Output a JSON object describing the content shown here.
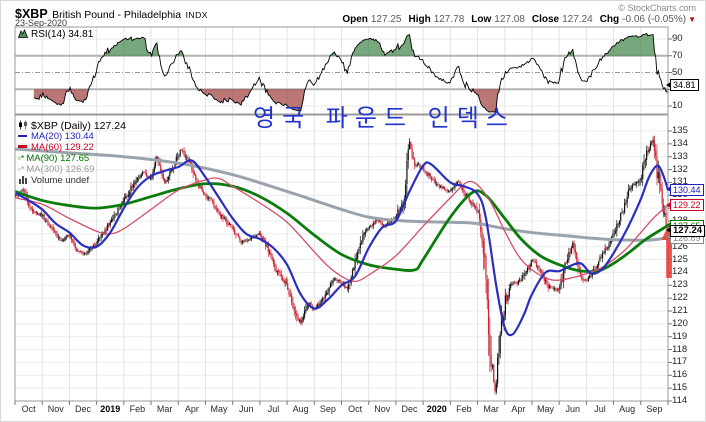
{
  "header": {
    "symbol": "$XBP",
    "name": "British Pound - Philadelphia",
    "exchange": "INDX",
    "date": "23-Sep-2020",
    "copyright": "© StockCharts.com",
    "quote": {
      "open_label": "Open",
      "open": "127.25",
      "high_label": "High",
      "high": "127.78",
      "low_label": "Low",
      "low": "127.08",
      "close_label": "Close",
      "close": "127.24",
      "chg_label": "Chg",
      "chg": "-0.06 (-0.05%)"
    }
  },
  "rsi_panel": {
    "label": "RSI(14) 34.81",
    "value_tag": "34.81",
    "axis_labels": [
      90,
      70,
      50,
      30,
      10
    ],
    "overbought": 70,
    "oversold": 30,
    "mid": 50,
    "last_value": 34.81
  },
  "main_panel": {
    "legend": [
      {
        "label": "$XBP (Daily) 127.24",
        "color": "#000000",
        "icon": "candlestick-icon"
      },
      {
        "label": "MA(20) 130.44",
        "color": "#2222bb",
        "icon": "line-icon"
      },
      {
        "label": "MA(60) 129.22",
        "color": "#cc0022",
        "icon": "line-icon"
      },
      {
        "label": "MA(90) 127.65",
        "color": "#007700",
        "icon": "square-asterisk-icon"
      },
      {
        "label": "MA(300) 126.69",
        "color": "#999999",
        "icon": "square-asterisk-icon"
      },
      {
        "label": "Volume undef",
        "color": "#333333",
        "icon": "volume-bars-icon"
      }
    ],
    "price_tags": [
      {
        "value": "130.44",
        "v": 130.44,
        "color": "#2222bb",
        "bold": false,
        "z": 4
      },
      {
        "value": "129.22",
        "v": 129.22,
        "color": "#cc0022",
        "bold": false,
        "z": 4
      },
      {
        "value": "127.65",
        "v": 127.65,
        "color": "#007700",
        "bold": false,
        "z": 3
      },
      {
        "value": "127.24",
        "v": 127.24,
        "color": "#000000",
        "bold": true,
        "z": 6
      },
      {
        "value": "126.69",
        "v": 126.69,
        "color": "#888888",
        "bold": false,
        "z": 2
      }
    ],
    "annotation": {
      "text": "영국 파운드 인덱스",
      "color": "#2233cc"
    },
    "arrow": {
      "color": "#e93b33"
    }
  },
  "x_axis": {
    "labels": [
      "Oct",
      "Nov",
      "Dec",
      "2019",
      "Feb",
      "Mar",
      "Apr",
      "May",
      "Jun",
      "Jul",
      "Aug",
      "Sep",
      "Oct",
      "Nov",
      "Dec",
      "2020",
      "Feb",
      "Mar",
      "Apr",
      "May",
      "Jun",
      "Jul",
      "Aug",
      "Sep"
    ],
    "bold_labels": [
      "2019",
      "2020"
    ]
  },
  "chart_data": {
    "type": "candlestick",
    "title": "$XBP British Pound - Philadelphia INDX (Daily)",
    "date_range": "Oct 2018 - 23 Sep 2020",
    "ylim": [
      114,
      135
    ],
    "y_step": 1,
    "grid": true,
    "months": [
      "Oct",
      "Nov",
      "Dec",
      "2019",
      "Feb",
      "Mar",
      "Apr",
      "May",
      "Jun",
      "Jul",
      "Aug",
      "Sep",
      "Oct",
      "Nov",
      "Dec",
      "2020",
      "Feb",
      "Mar",
      "Apr",
      "May",
      "Jun",
      "Jul",
      "Aug",
      "Sep"
    ],
    "ohlc_last": {
      "open": 127.25,
      "high": 127.78,
      "low": 127.08,
      "close": 127.24,
      "chg": -0.06,
      "chg_pct": -0.05
    },
    "price_path_note": "approximate close path, x in months from Oct-2018, y in index points",
    "price_path": [
      [
        0,
        129.9
      ],
      [
        0.3,
        130.4
      ],
      [
        0.6,
        128.9
      ],
      [
        1,
        128.4
      ],
      [
        1.3,
        127.5
      ],
      [
        1.7,
        126.5
      ],
      [
        2,
        126.9
      ],
      [
        2.3,
        125.7
      ],
      [
        2.6,
        125.4
      ],
      [
        3,
        126.3
      ],
      [
        3.4,
        127.6
      ],
      [
        3.7,
        128.6
      ],
      [
        4,
        129.5
      ],
      [
        4.3,
        130.7
      ],
      [
        4.7,
        131.9
      ],
      [
        5,
        131.2
      ],
      [
        5.2,
        133.1
      ],
      [
        5.5,
        130.9
      ],
      [
        5.8,
        132.2
      ],
      [
        6.1,
        133.5
      ],
      [
        6.4,
        132.6
      ],
      [
        6.7,
        130.9
      ],
      [
        7,
        130.1
      ],
      [
        7.4,
        129.0
      ],
      [
        7.7,
        128.1
      ],
      [
        8,
        127.4
      ],
      [
        8.3,
        126.4
      ],
      [
        8.6,
        126.5
      ],
      [
        9,
        127.1
      ],
      [
        9.3,
        125.7
      ],
      [
        9.6,
        124.2
      ],
      [
        10,
        123.0
      ],
      [
        10.3,
        120.9
      ],
      [
        10.5,
        120.1
      ],
      [
        10.8,
        121.7
      ],
      [
        11,
        121.1
      ],
      [
        11.4,
        122.2
      ],
      [
        11.7,
        123.5
      ],
      [
        12,
        123.2
      ],
      [
        12.2,
        122.7
      ],
      [
        12.5,
        124.6
      ],
      [
        12.8,
        126.9
      ],
      [
        13,
        127.4
      ],
      [
        13.3,
        128.1
      ],
      [
        13.6,
        127.6
      ],
      [
        14,
        128.3
      ],
      [
        14.3,
        130.1
      ],
      [
        14.5,
        134.2
      ],
      [
        14.65,
        132.6
      ],
      [
        15,
        132.1
      ],
      [
        15.3,
        131.3
      ],
      [
        15.6,
        130.7
      ],
      [
        16,
        130.3
      ],
      [
        16.3,
        131.1
      ],
      [
        16.6,
        129.9
      ],
      [
        17,
        128.9
      ],
      [
        17.2,
        126.8
      ],
      [
        17.45,
        118.5
      ],
      [
        17.65,
        114.7
      ],
      [
        17.8,
        118.8
      ],
      [
        18,
        121.6
      ],
      [
        18.2,
        123.1
      ],
      [
        18.5,
        123.2
      ],
      [
        18.8,
        124.1
      ],
      [
        19,
        125.0
      ],
      [
        19.3,
        124.1
      ],
      [
        19.6,
        122.9
      ],
      [
        20,
        122.6
      ],
      [
        20.3,
        125.1
      ],
      [
        20.5,
        126.2
      ],
      [
        20.8,
        123.6
      ],
      [
        21,
        123.3
      ],
      [
        21.3,
        124.3
      ],
      [
        21.6,
        125.4
      ],
      [
        22,
        126.9
      ],
      [
        22.3,
        128.6
      ],
      [
        22.6,
        130.5
      ],
      [
        23,
        131.3
      ],
      [
        23.2,
        133.3
      ],
      [
        23.45,
        134.5
      ],
      [
        23.6,
        131.9
      ],
      [
        23.75,
        129.9
      ],
      [
        23.9,
        128.2
      ],
      [
        24,
        127.24
      ]
    ],
    "series": [
      {
        "name": "MA(20)",
        "last": 130.44,
        "color": "#2a2ec0",
        "width": 2.2,
        "points": [
          [
            0,
            130.2
          ],
          [
            0.5,
            129.6
          ],
          [
            1,
            128.9
          ],
          [
            1.5,
            127.8
          ],
          [
            2,
            127.1
          ],
          [
            2.5,
            126.1
          ],
          [
            3,
            126.0
          ],
          [
            3.5,
            127.1
          ],
          [
            4,
            129.0
          ],
          [
            4.5,
            130.6
          ],
          [
            5,
            131.5
          ],
          [
            5.5,
            131.9
          ],
          [
            6,
            132.2
          ],
          [
            6.5,
            132.7
          ],
          [
            7,
            131.4
          ],
          [
            7.5,
            129.8
          ],
          [
            8,
            128.2
          ],
          [
            8.5,
            127.0
          ],
          [
            9,
            126.6
          ],
          [
            9.5,
            125.9
          ],
          [
            10,
            124.6
          ],
          [
            10.5,
            122.3
          ],
          [
            11,
            121.2
          ],
          [
            11.5,
            121.9
          ],
          [
            12,
            123.0
          ],
          [
            12.5,
            123.7
          ],
          [
            13,
            125.9
          ],
          [
            13.5,
            127.5
          ],
          [
            14,
            128.0
          ],
          [
            14.5,
            130.3
          ],
          [
            15,
            132.3
          ],
          [
            15.3,
            132.4
          ],
          [
            16,
            131.0
          ],
          [
            16.5,
            130.7
          ],
          [
            17,
            130.1
          ],
          [
            17.3,
            128.3
          ],
          [
            17.7,
            122.8
          ],
          [
            18,
            119.7
          ],
          [
            18.3,
            119.2
          ],
          [
            18.7,
            120.7
          ],
          [
            19,
            122.3
          ],
          [
            19.5,
            124.0
          ],
          [
            20,
            124.1
          ],
          [
            20.4,
            124.5
          ],
          [
            20.8,
            124.7
          ],
          [
            21.2,
            123.9
          ],
          [
            21.6,
            124.3
          ],
          [
            22,
            125.5
          ],
          [
            22.5,
            127.4
          ],
          [
            23,
            129.7
          ],
          [
            23.3,
            131.4
          ],
          [
            23.6,
            132.3
          ],
          [
            23.8,
            131.7
          ],
          [
            24,
            130.44
          ]
        ]
      },
      {
        "name": "MA(60)",
        "last": 129.22,
        "color": "#d4506a",
        "width": 1.3,
        "points": [
          [
            0,
            129.8
          ],
          [
            1,
            129.3
          ],
          [
            2,
            128.2
          ],
          [
            3,
            127.2
          ],
          [
            3.5,
            127.0
          ],
          [
            4,
            127.4
          ],
          [
            5,
            128.9
          ],
          [
            6,
            130.4
          ],
          [
            7,
            131.2
          ],
          [
            7.5,
            131.3
          ],
          [
            8,
            130.7
          ],
          [
            9,
            129.4
          ],
          [
            10,
            127.9
          ],
          [
            11,
            125.6
          ],
          [
            11.5,
            124.5
          ],
          [
            12,
            123.7
          ],
          [
            12.5,
            123.3
          ],
          [
            13,
            123.8
          ],
          [
            14,
            125.3
          ],
          [
            15,
            127.6
          ],
          [
            16,
            129.8
          ],
          [
            16.6,
            131.0
          ],
          [
            17,
            130.8
          ],
          [
            17.5,
            129.4
          ],
          [
            18,
            127.2
          ],
          [
            18.5,
            125.3
          ],
          [
            19,
            124.2
          ],
          [
            19.6,
            123.5
          ],
          [
            20,
            123.4
          ],
          [
            20.5,
            123.6
          ],
          [
            21,
            123.9
          ],
          [
            21.5,
            124.3
          ],
          [
            22,
            125.0
          ],
          [
            22.5,
            125.9
          ],
          [
            23,
            127.1
          ],
          [
            23.5,
            128.3
          ],
          [
            24,
            129.22
          ]
        ]
      },
      {
        "name": "MA(90)",
        "last": 127.65,
        "color": "#0b7c0b",
        "width": 2.8,
        "points": [
          [
            0,
            130.3
          ],
          [
            1,
            129.6
          ],
          [
            2,
            129.2
          ],
          [
            3,
            129.0
          ],
          [
            4,
            129.3
          ],
          [
            5,
            129.9
          ],
          [
            6,
            130.5
          ],
          [
            7,
            130.9
          ],
          [
            8,
            130.7
          ],
          [
            9,
            129.9
          ],
          [
            10,
            128.6
          ],
          [
            11,
            126.9
          ],
          [
            12,
            125.4
          ],
          [
            13,
            124.6
          ],
          [
            14,
            124.25
          ],
          [
            14.7,
            124.2
          ],
          [
            15,
            125.0
          ],
          [
            16,
            128.3
          ],
          [
            16.8,
            130.2
          ],
          [
            17.3,
            130.0
          ],
          [
            18,
            128.2
          ],
          [
            18.6,
            126.6
          ],
          [
            19.3,
            125.3
          ],
          [
            20,
            124.6
          ],
          [
            20.7,
            124.15
          ],
          [
            21.4,
            124.1
          ],
          [
            22,
            124.7
          ],
          [
            22.6,
            125.6
          ],
          [
            23.2,
            126.6
          ],
          [
            24,
            127.65
          ]
        ]
      },
      {
        "name": "MA(300)",
        "last": 126.69,
        "color": "#9aa3ab",
        "width": 3,
        "points": [
          [
            0,
            133.6
          ],
          [
            2,
            133.3
          ],
          [
            4,
            133.0
          ],
          [
            6,
            132.5
          ],
          [
            8,
            131.6
          ],
          [
            10,
            130.3
          ],
          [
            11,
            129.6
          ],
          [
            12,
            128.9
          ],
          [
            13,
            128.3
          ],
          [
            14,
            128.05
          ],
          [
            15,
            127.95
          ],
          [
            16,
            127.9
          ],
          [
            17,
            127.8
          ],
          [
            18,
            127.4
          ],
          [
            19,
            127.1
          ],
          [
            20,
            126.9
          ],
          [
            21,
            126.7
          ],
          [
            22,
            126.55
          ],
          [
            23,
            126.5
          ],
          [
            23.5,
            126.55
          ],
          [
            24,
            126.69
          ]
        ]
      }
    ],
    "rsi": {
      "period": 14,
      "last": 34.81,
      "range": [
        0,
        100
      ],
      "reference_lines": [
        70,
        50,
        30
      ]
    },
    "candle_up_color": "#111111",
    "candle_down_color": "#cc2233"
  }
}
